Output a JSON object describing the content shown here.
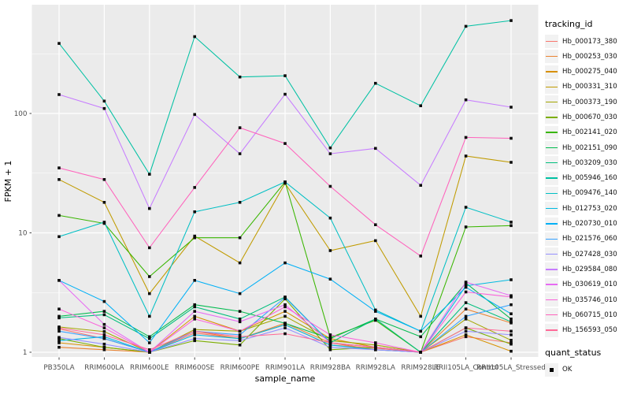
{
  "figure": {
    "panel_bg": "#EBEBEB",
    "grid_color": "#FFFFFF",
    "tick_label_color": "#4D4D4D",
    "axis_title_color": "#000000",
    "marker_color": "#0d0d0d",
    "legend_key_bg": "#F2F2F2"
  },
  "legend": {
    "tracking_title": "tracking_id",
    "quant_title": "quant_status",
    "quant_items": [
      {
        "label": "OK",
        "marker": "black-filled-square"
      }
    ]
  },
  "chart_data": {
    "type": "line",
    "title": "",
    "xlabel": "sample_name",
    "ylabel": "FPKM + 1",
    "y_scale": "log10",
    "ylim": [
      0.9,
      800
    ],
    "y_major_ticks": [
      1,
      10,
      100
    ],
    "y_tick_labels": [
      "1",
      "10",
      "100"
    ],
    "y_minor_gridlines": [
      3.162,
      31.62,
      316.2
    ],
    "grid": true,
    "legend_position": "right",
    "point_marker": "filled-square (quant_status = OK)",
    "categories": [
      "PB350LA",
      "RRIM600LA",
      "RRIM600LE",
      "RRIM600SE",
      "RRIM600PE",
      "RRIM901LA",
      "RRIM928BA",
      "RRIM928LA",
      "RRIM928LE",
      "RRII105LA_Control",
      "RRII105LA_Stressed"
    ],
    "series": [
      {
        "name": "Hb_000173_380",
        "color": "#F8766D",
        "values": [
          1.57,
          1.3,
          1.0,
          1.45,
          1.3,
          1.7,
          1.15,
          1.08,
          1.0,
          1.35,
          1.2
        ]
      },
      {
        "name": "Hb_000253_030",
        "color": "#EA8331",
        "values": [
          1.1,
          1.05,
          1.0,
          1.5,
          1.3,
          1.75,
          1.2,
          1.05,
          1.0,
          2.3,
          1.76
        ]
      },
      {
        "name": "Hb_000275_040",
        "color": "#D89000",
        "values": [
          1.2,
          1.1,
          1.0,
          2.0,
          1.5,
          2.2,
          1.3,
          1.1,
          1.0,
          1.4,
          1.02
        ]
      },
      {
        "name": "Hb_000331_310",
        "color": "#C09B00",
        "values": [
          28.0,
          18.0,
          3.1,
          9.4,
          5.6,
          26.0,
          7.1,
          8.6,
          2.0,
          44.0,
          39.0
        ]
      },
      {
        "name": "Hb_000373_190",
        "color": "#A3A500",
        "values": [
          1.63,
          1.49,
          1.0,
          1.55,
          1.5,
          2.0,
          1.25,
          1.15,
          1.0,
          1.9,
          1.26
        ]
      },
      {
        "name": "Hb_000670_030",
        "color": "#7CAE00",
        "values": [
          1.3,
          1.1,
          1.0,
          1.25,
          1.15,
          2.8,
          1.05,
          1.1,
          1.0,
          1.6,
          1.17
        ]
      },
      {
        "name": "Hb_002141_020",
        "color": "#39B600",
        "values": [
          14.0,
          12.0,
          4.3,
          9.1,
          9.1,
          26.7,
          1.33,
          1.85,
          1.0,
          11.2,
          11.5
        ]
      },
      {
        "name": "Hb_002151_090",
        "color": "#00BB4E",
        "values": [
          2.0,
          2.2,
          1.35,
          2.5,
          2.2,
          1.75,
          1.3,
          1.9,
          1.35,
          3.8,
          1.9
        ]
      },
      {
        "name": "Hb_003209_030",
        "color": "#00BF7D",
        "values": [
          1.94,
          2.06,
          1.3,
          2.4,
          1.9,
          2.9,
          1.2,
          1.9,
          1.0,
          2.6,
          1.8
        ]
      },
      {
        "name": "Hb_005946_160",
        "color": "#00C1A3",
        "values": [
          386,
          127,
          31.0,
          440,
          202,
          207,
          51.5,
          179,
          116,
          537,
          600
        ]
      },
      {
        "name": "Hb_009476_140",
        "color": "#00BFC4",
        "values": [
          9.3,
          12.3,
          2.0,
          15.0,
          18.0,
          26.7,
          13.3,
          2.26,
          1.5,
          16.4,
          12.3
        ]
      },
      {
        "name": "Hb_012753_020",
        "color": "#00BAE0",
        "values": [
          1.25,
          1.35,
          1.0,
          1.4,
          1.3,
          1.7,
          1.15,
          1.05,
          1.0,
          3.6,
          4.05
        ]
      },
      {
        "name": "Hb_020730_010",
        "color": "#00B0F6",
        "values": [
          4.0,
          2.66,
          1.2,
          4.0,
          3.1,
          5.6,
          4.1,
          2.2,
          1.5,
          3.5,
          2.1
        ]
      },
      {
        "name": "Hb_021576_060",
        "color": "#35A2FF",
        "values": [
          1.5,
          1.3,
          1.0,
          1.5,
          1.4,
          2.87,
          1.2,
          1.1,
          1.0,
          2.0,
          2.5
        ]
      },
      {
        "name": "Hb_027428_030",
        "color": "#9590FF",
        "values": [
          1.33,
          1.17,
          1.0,
          1.3,
          1.25,
          1.6,
          1.1,
          1.05,
          1.0,
          1.5,
          1.4
        ]
      },
      {
        "name": "Hb_029584_080",
        "color": "#C77CFF",
        "values": [
          144,
          110,
          16.0,
          98.0,
          46.0,
          145,
          46.0,
          51.0,
          25.0,
          130,
          113
        ]
      },
      {
        "name": "Hb_030619_010",
        "color": "#E76BF3",
        "values": [
          4.0,
          1.71,
          1.0,
          2.2,
          1.8,
          2.5,
          1.2,
          1.1,
          1.0,
          3.87,
          2.98
        ]
      },
      {
        "name": "Hb_035746_010",
        "color": "#FA62DB",
        "values": [
          2.3,
          1.6,
          1.0,
          1.9,
          1.5,
          2.4,
          1.4,
          1.2,
          1.0,
          3.2,
          2.9
        ]
      },
      {
        "name": "Hb_060715_010",
        "color": "#FF62BC",
        "values": [
          35.0,
          28.0,
          7.5,
          24.0,
          76.0,
          56.0,
          24.5,
          11.7,
          6.4,
          63.0,
          62.0
        ]
      },
      {
        "name": "Hb_156593_050",
        "color": "#FF6A98",
        "values": [
          1.6,
          1.4,
          1.05,
          1.5,
          1.35,
          1.43,
          1.2,
          1.1,
          1.0,
          1.6,
          1.5
        ]
      }
    ]
  }
}
